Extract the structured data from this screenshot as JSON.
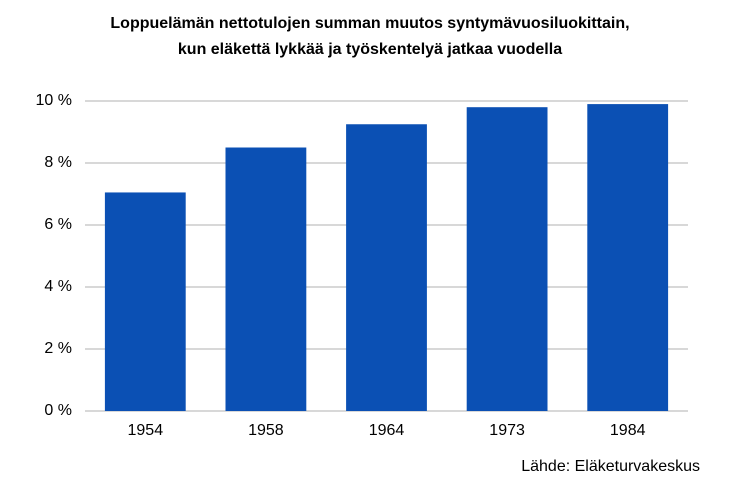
{
  "chart_data": {
    "type": "bar",
    "title": [
      "Loppuelämän nettotulojen summan muutos syntymävuosiluokittain,",
      "kun eläkettä lykkää ja työskentelyä jatkaa vuodella"
    ],
    "categories": [
      "1954",
      "1958",
      "1964",
      "1973",
      "1984"
    ],
    "values": [
      7.05,
      8.5,
      9.25,
      9.8,
      9.9
    ],
    "color": "#0b50b4",
    "ylim": [
      0,
      10
    ],
    "yticks": [
      {
        "value": 0,
        "label": "0 %"
      },
      {
        "value": 2,
        "label": "2 %"
      },
      {
        "value": 4,
        "label": "4 %"
      },
      {
        "value": 6,
        "label": "6 %"
      },
      {
        "value": 8,
        "label": "8 %"
      },
      {
        "value": 10,
        "label": "10 %"
      }
    ],
    "grid": true,
    "source": "Lähde: Eläketurvakeskus"
  }
}
